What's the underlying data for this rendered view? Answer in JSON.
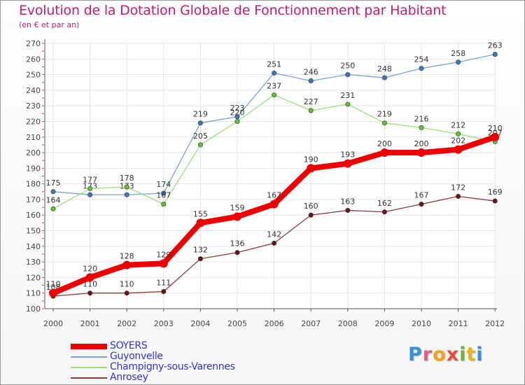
{
  "title": "Evolution de la Dotation Globale de Fonctionnement par Habitant",
  "subtitle": "(en € et par an)",
  "logo": {
    "text": "Proxiti",
    "letters": [
      "P",
      "r",
      "o",
      "x",
      "i",
      "t",
      "i"
    ],
    "colors": [
      "#3a8fd6",
      "#e85b8a",
      "#f6a21a",
      "#e84c3d",
      "#6cb33f",
      "#e8b31a",
      "#3a8fd6"
    ]
  },
  "chart_data": {
    "type": "line",
    "title": "Evolution de la Dotation Globale de Fonctionnement par Habitant",
    "subtitle": "(en € et par an)",
    "x": [
      "2000",
      "2001",
      "2002",
      "2003",
      "2004",
      "2005",
      "2006",
      "2007",
      "2008",
      "2009",
      "2010",
      "2011",
      "2012"
    ],
    "ylim": [
      100,
      270
    ],
    "yticks": [
      100,
      110,
      120,
      130,
      140,
      150,
      160,
      170,
      180,
      190,
      200,
      210,
      220,
      230,
      240,
      250,
      260,
      270
    ],
    "grid": true,
    "legend_position": "bottom-left",
    "series": [
      {
        "name": "Guyonvelle",
        "color": "#7aa3d1",
        "marker": "#3a78c2",
        "values": [
          175,
          173,
          173,
          174,
          219,
          223,
          251,
          246,
          250,
          248,
          254,
          258,
          263
        ]
      },
      {
        "name": "Champigny-sous-Varennes",
        "color": "#9be07a",
        "marker": "#62c12f",
        "values": [
          164,
          177,
          178,
          167,
          205,
          220,
          237,
          227,
          231,
          219,
          216,
          212,
          207
        ]
      },
      {
        "name": "Anrosey",
        "color": "#8b3a3a",
        "marker": "#6b1414",
        "values": [
          108,
          110,
          110,
          111,
          132,
          136,
          142,
          160,
          163,
          162,
          167,
          172,
          169
        ]
      },
      {
        "name": "SOYERS",
        "color": "#ee0000",
        "marker": "#ee0000",
        "values": [
          110,
          120,
          128,
          129,
          155,
          159,
          167,
          190,
          193,
          200,
          200,
          202,
          210
        ]
      }
    ]
  }
}
